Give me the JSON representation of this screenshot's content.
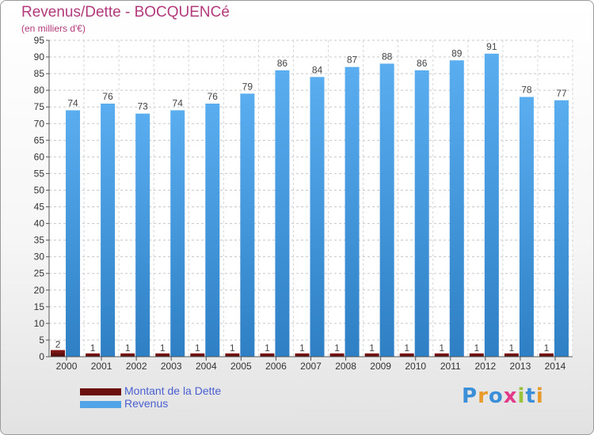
{
  "chart_data": {
    "type": "bar",
    "title": "Revenus/Dette - BOCQUENCé",
    "subtitle": "(en milliers d'€)",
    "categories": [
      "2000",
      "2001",
      "2002",
      "2003",
      "2004",
      "2005",
      "2006",
      "2007",
      "2008",
      "2009",
      "2010",
      "2011",
      "2012",
      "2013",
      "2014"
    ],
    "series": [
      {
        "name": "Montant de la Dette",
        "color": "#6b0f0f",
        "values": [
          2,
          1,
          1,
          1,
          1,
          1,
          1,
          1,
          1,
          1,
          1,
          1,
          1,
          1,
          1
        ]
      },
      {
        "name": "Revenus",
        "color": "#4fa3e6",
        "values": [
          74,
          76,
          73,
          74,
          76,
          79,
          86,
          84,
          87,
          88,
          86,
          89,
          91,
          78,
          77
        ]
      }
    ],
    "ylim": [
      0,
      95
    ],
    "yticks": [
      0,
      5,
      10,
      15,
      20,
      25,
      30,
      35,
      40,
      45,
      50,
      55,
      60,
      65,
      70,
      75,
      80,
      85,
      90,
      95
    ],
    "ytick_labels": [
      "0",
      "5",
      "10",
      "15",
      "20",
      "25",
      "30",
      "35",
      "40",
      "45",
      "50",
      "55",
      "60",
      "65",
      "70",
      "75",
      "80",
      "85",
      "90",
      "95"
    ],
    "grid": true,
    "legend_position": "bottom-left"
  },
  "logo": {
    "text": "Proxiti"
  }
}
